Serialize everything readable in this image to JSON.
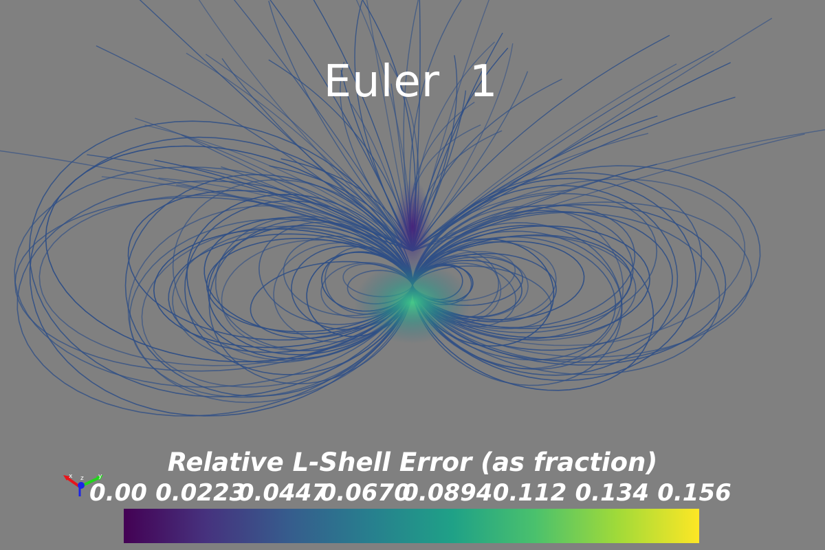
{
  "view": {
    "title": "Euler  1",
    "background": "#808080"
  },
  "scalar_bar": {
    "title": "Relative L-Shell Error (as fraction)",
    "ticks": [
      "0.00",
      "0.0223",
      "0.0447",
      "0.0670",
      "0.0894",
      "0.112",
      "0.134",
      "0.156"
    ],
    "range": [
      0.0,
      0.156
    ],
    "colormap": "viridis",
    "colormap_stops": [
      "#440154",
      "#46327e",
      "#365c8d",
      "#277f8e",
      "#1fa187",
      "#4ac16d",
      "#a0da39",
      "#fde725"
    ]
  },
  "orientation_axes": {
    "x_label": "x",
    "y_label": "y",
    "z_label": "z",
    "x_color": "#e8141a",
    "y_color": "#22d41c",
    "z_color": "#1c24e6"
  },
  "field_lines": {
    "line_color": "#2f4f86",
    "core_color": "#3e2370",
    "error_glow_color": "#22a884"
  }
}
